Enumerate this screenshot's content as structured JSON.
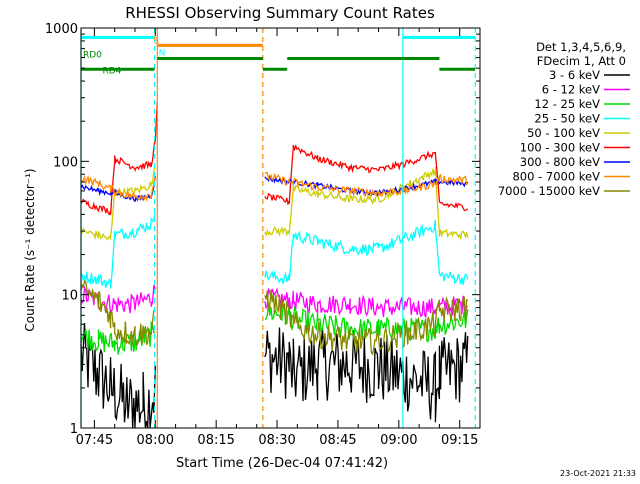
{
  "chart_data": {
    "type": "line",
    "title": "RHESSI Observing Summary Count Rates",
    "xlabel": "Start Time (26-Dec-04 07:41:42)",
    "ylabel": "Count Rate (s⁻¹ detector⁻¹)",
    "y_scale": "log",
    "ylim": [
      1,
      1000
    ],
    "xlim": [
      "07:41:42",
      "09:20:00"
    ],
    "x_ticks": [
      "07:45",
      "08:00",
      "08:15",
      "08:30",
      "08:45",
      "09:00",
      "09:15"
    ],
    "y_ticks": [
      "1",
      "10",
      "100",
      "1000"
    ],
    "grid": false,
    "legend_position": "right",
    "legend_header": [
      "Det 1,3,4,5,6,9,",
      "FDecim 1, Att 0"
    ],
    "series": [
      {
        "name": "3 - 6 keV",
        "color": "#000000",
        "x": [
          "07:41:42",
          "07:46",
          "07:49",
          "07:53",
          "07:57",
          "07:59",
          "08:00"
        ],
        "y": [
          3.5,
          2.5,
          2.0,
          1.5,
          1.5,
          1.6,
          2.0
        ]
      },
      {
        "name": "6 - 12 keV",
        "color": "#ff00ff",
        "x": [
          "07:41:42",
          "07:46",
          "07:50",
          "07:55",
          "07:59",
          "08:00"
        ],
        "y": [
          10,
          9,
          8.5,
          8.5,
          9.5,
          11
        ]
      },
      {
        "name": "12 - 25 keV",
        "color": "#00dd00",
        "x": [
          "07:41:42",
          "07:46",
          "07:50",
          "07:55",
          "07:59",
          "08:00"
        ],
        "y": [
          5,
          4.5,
          4.3,
          4.4,
          5,
          6
        ]
      },
      {
        "name": "25 - 50 keV",
        "color": "#00ffff",
        "x": [
          "07:41:42",
          "07:46",
          "07:49",
          "07:50",
          "07:55",
          "07:59",
          "08:00"
        ],
        "y": [
          14,
          13,
          12,
          28,
          30,
          34,
          45
        ]
      },
      {
        "name": "50 - 100 keV",
        "color": "#cccc00",
        "x": [
          "07:41:42",
          "07:46",
          "07:49",
          "07:50",
          "07:55",
          "07:59",
          "08:00"
        ],
        "y": [
          30,
          28,
          26,
          58,
          60,
          66,
          90
        ]
      },
      {
        "name": "100 - 300 keV",
        "color": "#ff0000",
        "x": [
          "07:41:42",
          "07:46",
          "07:49",
          "07:50",
          "07:55",
          "07:59",
          "08:00",
          "08:00:30"
        ],
        "y": [
          50,
          45,
          42,
          105,
          90,
          95,
          140,
          270
        ]
      },
      {
        "name": "300 - 800 keV",
        "color": "#0000ff",
        "x": [
          "07:41:42",
          "07:46",
          "07:49",
          "07:50",
          "07:55",
          "07:59",
          "08:00"
        ],
        "y": [
          65,
          60,
          58,
          58,
          52,
          55,
          75
        ]
      },
      {
        "name": "800 - 7000 keV",
        "color": "#ff8800",
        "x": [
          "07:41:42",
          "07:46",
          "07:49",
          "07:50",
          "07:55",
          "07:59",
          "08:00"
        ],
        "y": [
          75,
          68,
          62,
          60,
          54,
          56,
          78
        ]
      },
      {
        "name": "7000 - 15000 keV",
        "color": "#888800",
        "x": [
          "07:41:42",
          "07:46",
          "07:49",
          "07:50",
          "07:55",
          "07:59",
          "08:00"
        ],
        "y": [
          11,
          9,
          7,
          5.5,
          5.0,
          5.3,
          6.5
        ]
      }
    ],
    "segment2": {
      "x": [
        "08:27",
        "08:33",
        "08:34",
        "08:40",
        "08:48",
        "08:55",
        "09:01",
        "09:09",
        "09:10",
        "09:17"
      ],
      "3 - 6 keV": [
        3.5,
        3.0,
        2.5,
        3.0,
        3.0,
        2.8,
        2.5,
        2.0,
        2.5,
        3.0
      ],
      "6 - 12 keV": [
        9.5,
        9.0,
        9.0,
        8.5,
        8.5,
        8.0,
        8.0,
        8.0,
        8.0,
        8.5
      ],
      "12 - 25 keV": [
        7.5,
        7.0,
        6.5,
        6.0,
        5.5,
        5.5,
        5.5,
        5.5,
        6.0,
        6.5
      ],
      "25 - 50 keV": [
        14,
        13,
        28,
        25,
        22,
        22,
        26,
        33,
        14,
        13
      ],
      "50 - 100 keV": [
        30,
        30,
        62,
        57,
        52,
        52,
        64,
        85,
        29,
        28
      ],
      "100 - 300 keV": [
        55,
        50,
        130,
        105,
        90,
        86,
        95,
        115,
        48,
        45
      ],
      "300 - 800 keV": [
        75,
        70,
        70,
        66,
        60,
        58,
        62,
        70,
        70,
        68
      ],
      "800 - 7000 keV": [
        78,
        70,
        70,
        64,
        60,
        58,
        60,
        68,
        74,
        72
      ],
      "7000 - 15000 keV": [
        10,
        7,
        6,
        5,
        4.5,
        4.5,
        5.0,
        6,
        7.5,
        8
      ]
    },
    "gap": [
      "08:00:30",
      "08:26:30"
    ],
    "vlines": [
      {
        "x": "07:41:42",
        "color": "#00ffff",
        "style": "solid"
      },
      {
        "x": "07:59:50",
        "color": "#00ffff",
        "style": "dashed"
      },
      {
        "x": "08:00:30",
        "color": "#ff8800",
        "style": "solid"
      },
      {
        "x": "08:26:30",
        "color": "#ff8800",
        "style": "dashed"
      },
      {
        "x": "09:01:00",
        "color": "#00ffff",
        "style": "solid"
      },
      {
        "x": "09:18:50",
        "color": "#00ffff",
        "style": "dashed"
      }
    ],
    "flag_bars": [
      {
        "label": "",
        "color": "#00ffff",
        "y": 850,
        "segments": [
          [
            "07:41:42",
            "07:59:50"
          ],
          [
            "09:01:00",
            "09:18:50"
          ]
        ]
      },
      {
        "label": "S",
        "color": "#ff8800",
        "y": 740,
        "segments": [
          [
            "08:00:30",
            "08:26:30"
          ]
        ]
      },
      {
        "label": "N",
        "color": "#00ffff",
        "y": 740,
        "segments": []
      },
      {
        "label": "RD0",
        "color": "#008800",
        "y": 590,
        "segments": [
          [
            "08:00:30",
            "08:26:30"
          ],
          [
            "08:32:30",
            "09:10:00"
          ]
        ]
      },
      {
        "label": "RD4",
        "color": "#008800",
        "y": 490,
        "segments": [
          [
            "07:41:42",
            "07:59:50"
          ],
          [
            "08:26:30",
            "08:32:30"
          ],
          [
            "09:10:00",
            "09:18:50"
          ]
        ]
      }
    ]
  },
  "footer": {
    "timestamp": "23-Oct-2021 21:33"
  }
}
